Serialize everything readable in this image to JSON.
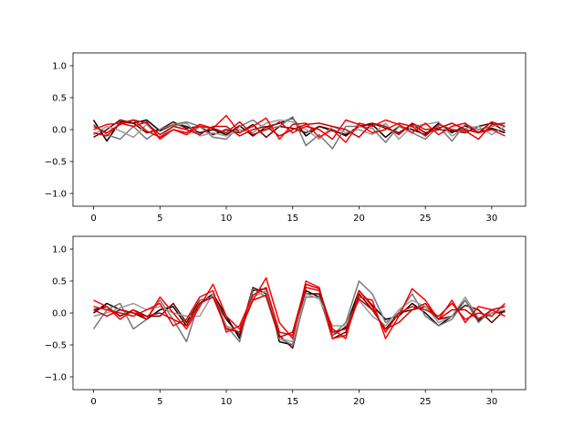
{
  "chart_data": [
    {
      "type": "line",
      "title": "",
      "xlabel": "",
      "ylabel": "",
      "xlim": [
        -1.55,
        32.55
      ],
      "ylim": [
        -1.2,
        1.2
      ],
      "xticks": [
        0,
        5,
        10,
        15,
        20,
        25,
        30
      ],
      "yticks": [
        1.0,
        0.5,
        0.0,
        -0.5,
        -1.0
      ],
      "xtick_labels": [
        "0",
        "5",
        "10",
        "15",
        "20",
        "25",
        "30"
      ],
      "ytick_labels": [
        "1.0",
        "0.5",
        "0.0",
        "−0.5",
        "−1.0"
      ],
      "grid": false,
      "legend": "none",
      "x": [
        0,
        1,
        2,
        3,
        4,
        5,
        6,
        7,
        8,
        9,
        10,
        11,
        12,
        13,
        14,
        15,
        16,
        17,
        18,
        19,
        20,
        21,
        22,
        23,
        24,
        25,
        26,
        27,
        28,
        29,
        30,
        31
      ],
      "series": [
        {
          "color": "#000000",
          "values": [
            0.15,
            -0.18,
            0.12,
            0.1,
            0.15,
            -0.02,
            0.08,
            0.05,
            -0.05,
            0.0,
            -0.08,
            0.06,
            -0.1,
            0.04,
            0.1,
            0.18,
            -0.1,
            0.05,
            -0.02,
            -0.08,
            0.05,
            0.08,
            -0.12,
            0.05,
            0.0,
            -0.08,
            0.1,
            -0.05,
            0.06,
            -0.04,
            0.02,
            -0.05
          ]
        },
        {
          "color": "#5a0000",
          "values": [
            -0.12,
            0.0,
            0.15,
            0.1,
            -0.05,
            0.0,
            0.12,
            0.02,
            0.05,
            -0.08,
            0.0,
            -0.05,
            0.08,
            -0.12,
            0.05,
            0.02,
            -0.05,
            0.05,
            0.0,
            -0.1,
            0.05,
            0.1,
            0.02,
            -0.05,
            0.08,
            -0.05,
            0.0,
            -0.02,
            -0.05,
            0.05,
            0.1,
            -0.02
          ]
        },
        {
          "color": "#777777",
          "values": [
            0.08,
            -0.08,
            -0.15,
            0.05,
            -0.15,
            0.0,
            0.08,
            0.12,
            0.05,
            -0.12,
            -0.15,
            0.05,
            0.15,
            0.0,
            0.05,
            0.2,
            -0.25,
            -0.08,
            -0.3,
            0.05,
            0.05,
            0.02,
            -0.2,
            0.05,
            -0.05,
            -0.15,
            0.05,
            -0.18,
            0.08,
            0.0,
            0.05,
            0.1
          ]
        },
        {
          "color": "#999999",
          "values": [
            -0.08,
            0.05,
            -0.02,
            -0.12,
            0.08,
            -0.12,
            0.05,
            0.1,
            -0.1,
            -0.05,
            -0.1,
            0.0,
            -0.05,
            0.1,
            0.15,
            0.12,
            0.0,
            -0.15,
            0.05,
            -0.05,
            0.0,
            -0.08,
            0.1,
            -0.15,
            0.05,
            0.08,
            0.12,
            -0.1,
            0.02,
            0.05,
            -0.08,
            0.05
          ]
        },
        {
          "color": "#ff0000",
          "values": [
            0.0,
            0.08,
            0.1,
            0.15,
            -0.02,
            -0.12,
            0.0,
            -0.08,
            0.05,
            0.02,
            0.22,
            -0.05,
            0.05,
            0.18,
            -0.15,
            0.08,
            0.1,
            -0.12,
            0.0,
            -0.2,
            0.1,
            0.05,
            0.15,
            0.08,
            -0.05,
            0.1,
            -0.08,
            0.05,
            0.1,
            -0.05,
            0.0,
            -0.1
          ]
        },
        {
          "color": "#ee0000",
          "values": [
            -0.05,
            -0.1,
            0.1,
            0.05,
            0.12,
            -0.15,
            0.0,
            -0.05,
            0.08,
            0.02,
            -0.05,
            0.12,
            -0.08,
            0.0,
            0.12,
            -0.05,
            0.05,
            0.0,
            -0.15,
            0.15,
            0.08,
            -0.05,
            0.0,
            0.1,
            0.05,
            -0.1,
            0.08,
            0.0,
            -0.02,
            -0.15,
            0.08,
            0.1
          ]
        },
        {
          "color": "#cc0000",
          "values": [
            0.05,
            -0.05,
            0.08,
            0.15,
            0.1,
            -0.08,
            0.05,
            0.0,
            -0.08,
            0.05,
            0.05,
            -0.1,
            0.0,
            0.05,
            -0.1,
            0.0,
            0.08,
            0.1,
            0.05,
            0.0,
            -0.12,
            0.1,
            0.05,
            -0.08,
            0.1,
            0.0,
            0.02,
            0.1,
            0.0,
            -0.05,
            0.12,
            0.05
          ]
        }
      ]
    },
    {
      "type": "line",
      "title": "",
      "xlabel": "",
      "ylabel": "",
      "xlim": [
        -1.55,
        32.55
      ],
      "ylim": [
        -1.2,
        1.2
      ],
      "xticks": [
        0,
        5,
        10,
        15,
        20,
        25,
        30
      ],
      "yticks": [
        1.0,
        0.5,
        0.0,
        -0.5,
        -1.0
      ],
      "xtick_labels": [
        "0",
        "5",
        "10",
        "15",
        "20",
        "25",
        "30"
      ],
      "ytick_labels": [
        "1.0",
        "0.5",
        "0.0",
        "−0.5",
        "−1.0"
      ],
      "grid": false,
      "legend": "none",
      "x": [
        0,
        1,
        2,
        3,
        4,
        5,
        6,
        7,
        8,
        9,
        10,
        11,
        12,
        13,
        14,
        15,
        16,
        17,
        18,
        19,
        20,
        21,
        22,
        23,
        24,
        25,
        26,
        27,
        28,
        29,
        30,
        31
      ],
      "series": [
        {
          "color": "#000000",
          "values": [
            0.0,
            0.15,
            0.05,
            0.0,
            -0.1,
            0.05,
            0.1,
            -0.2,
            0.15,
            0.3,
            -0.05,
            -0.4,
            0.35,
            0.38,
            -0.45,
            -0.5,
            0.35,
            0.25,
            -0.35,
            -0.22,
            0.35,
            0.12,
            -0.1,
            -0.05,
            0.15,
            0.0,
            -0.2,
            -0.05,
            0.2,
            -0.12,
            0.0,
            0.02
          ]
        },
        {
          "color": "#5a0000",
          "values": [
            0.05,
            0.1,
            -0.05,
            0.05,
            -0.05,
            -0.05,
            0.15,
            -0.15,
            0.2,
            0.25,
            -0.1,
            -0.35,
            0.4,
            0.3,
            -0.35,
            -0.55,
            0.3,
            0.3,
            -0.4,
            -0.3,
            0.3,
            0.05,
            -0.25,
            0.0,
            0.05,
            0.1,
            -0.1,
            -0.05,
            0.12,
            0.05,
            -0.15,
            0.05
          ]
        },
        {
          "color": "#777777",
          "values": [
            -0.25,
            0.05,
            0.15,
            -0.25,
            -0.1,
            0.2,
            -0.1,
            -0.45,
            0.2,
            0.25,
            -0.2,
            -0.45,
            0.38,
            0.25,
            -0.4,
            -0.5,
            0.25,
            0.25,
            -0.35,
            -0.15,
            0.5,
            0.3,
            -0.15,
            0.0,
            0.3,
            -0.05,
            -0.2,
            -0.1,
            0.2,
            -0.15,
            0.05,
            -0.05
          ]
        },
        {
          "color": "#999999",
          "values": [
            -0.05,
            0.0,
            0.08,
            0.15,
            0.05,
            0.1,
            0.0,
            -0.05,
            -0.05,
            0.3,
            -0.2,
            -0.3,
            0.25,
            0.35,
            -0.4,
            -0.45,
            0.3,
            0.22,
            -0.2,
            -0.2,
            0.2,
            -0.05,
            -0.2,
            0.05,
            0.2,
            0.1,
            -0.15,
            -0.05,
            0.25,
            -0.08,
            0.0,
            0.05
          ]
        },
        {
          "color": "#ff0000",
          "values": [
            0.2,
            0.1,
            -0.1,
            0.05,
            -0.1,
            0.25,
            0.0,
            -0.25,
            0.1,
            0.45,
            -0.05,
            -0.25,
            0.2,
            0.55,
            -0.15,
            -0.4,
            0.5,
            0.4,
            -0.4,
            -0.35,
            0.25,
            0.2,
            -0.4,
            -0.05,
            0.38,
            0.2,
            -0.1,
            0.2,
            -0.15,
            0.1,
            0.05,
            -0.05
          ]
        },
        {
          "color": "#ee0000",
          "values": [
            0.1,
            0.05,
            0.0,
            -0.05,
            0.05,
            0.15,
            -0.2,
            -0.1,
            0.25,
            0.35,
            -0.3,
            -0.2,
            0.28,
            0.4,
            -0.3,
            -0.35,
            0.4,
            0.35,
            -0.25,
            -0.4,
            0.35,
            0.1,
            -0.3,
            0.0,
            0.1,
            0.05,
            -0.05,
            0.15,
            -0.1,
            0.0,
            -0.05,
            0.15
          ]
        },
        {
          "color": "#cc0000",
          "values": [
            0.05,
            -0.05,
            0.05,
            0.0,
            -0.05,
            0.0,
            -0.1,
            -0.2,
            0.15,
            0.25,
            -0.25,
            -0.3,
            0.2,
            0.28,
            -0.38,
            -0.3,
            0.45,
            0.38,
            -0.3,
            -0.25,
            0.22,
            0.05,
            -0.25,
            -0.15,
            0.05,
            0.15,
            -0.1,
            0.05,
            0.05,
            -0.1,
            0.05,
            0.1
          ]
        }
      ]
    }
  ]
}
